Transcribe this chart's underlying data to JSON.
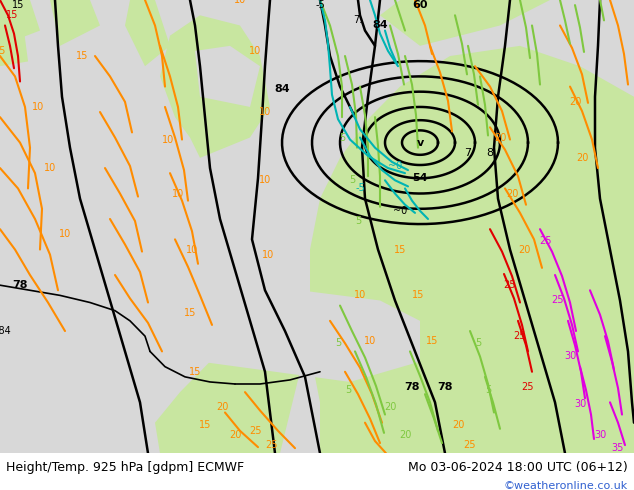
{
  "title_left": "Height/Temp. 925 hPa [gdpm] ECMWF",
  "title_right": "Mo 03-06-2024 18:00 UTC (06+12)",
  "watermark": "©weatheronline.co.uk",
  "fig_width": 6.34,
  "fig_height": 4.9,
  "dpi": 100,
  "bg_green": "#c8e6a0",
  "bg_gray": "#c8c8c8",
  "bg_light_gray": "#d8d8d8",
  "black_line_color": "#000000",
  "orange_color": "#ff8c00",
  "green_color": "#7fc840",
  "cyan_color": "#00b4b4",
  "magenta_color": "#e000e0",
  "red_color": "#e00000",
  "title_fontsize": 9,
  "watermark_color": "#3060d0",
  "watermark_fontsize": 8
}
